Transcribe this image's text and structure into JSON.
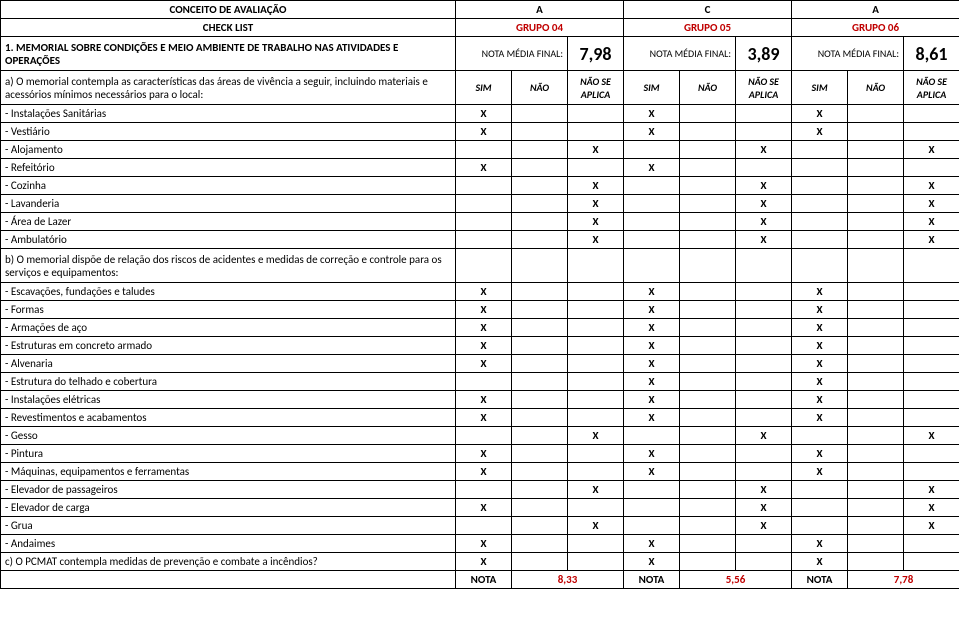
{
  "header": {
    "concept_label": "CONCEITO DE AVALIAÇÃO",
    "letters": [
      "A",
      "C",
      "A"
    ],
    "checklist_label": "CHECK LIST",
    "groups": [
      "GRUPO 04",
      "GRUPO 05",
      "GRUPO 06"
    ]
  },
  "section": {
    "title": "1. MEMORIAL SOBRE CONDIÇÕES E MEIO AMBIENTE DE TRABALHO NAS ATIVIDADES E OPERAÇÕES",
    "nota_label": "NOTA MÉDIA FINAL:",
    "nota_values": [
      "7,98",
      "3,89",
      "8,61"
    ]
  },
  "subhead": {
    "text": "a) O memorial contempla as características das áreas de vivência a seguir, incluindo materiais e acessórios mínimos necessários para o local:",
    "cols": {
      "sim": "SIM",
      "nao": "NÃO",
      "nsa": "NÃO SE APLICA"
    }
  },
  "rows_a": [
    {
      "label": " - Instalações Sanitárias",
      "g": [
        [
          "X",
          "",
          ""
        ],
        [
          "X",
          "",
          ""
        ],
        [
          "X",
          "",
          ""
        ]
      ]
    },
    {
      "label": " - Vestiário",
      "g": [
        [
          "X",
          "",
          ""
        ],
        [
          "X",
          "",
          ""
        ],
        [
          "X",
          "",
          ""
        ]
      ]
    },
    {
      "label": " - Alojamento",
      "g": [
        [
          "",
          "",
          "X"
        ],
        [
          "",
          "",
          "X"
        ],
        [
          "",
          "",
          "X"
        ]
      ]
    },
    {
      "label": " - Refeitório",
      "g": [
        [
          "X",
          "",
          ""
        ],
        [
          "X",
          "",
          ""
        ],
        [
          "",
          "",
          ""
        ]
      ]
    },
    {
      "label": " - Cozinha",
      "g": [
        [
          "",
          "",
          "X"
        ],
        [
          "",
          "",
          "X"
        ],
        [
          "",
          "",
          "X"
        ]
      ]
    },
    {
      "label": " - Lavanderia",
      "g": [
        [
          "",
          "",
          "X"
        ],
        [
          "",
          "",
          "X"
        ],
        [
          "",
          "",
          "X"
        ]
      ]
    },
    {
      "label": " - Área de Lazer",
      "g": [
        [
          "",
          "",
          "X"
        ],
        [
          "",
          "",
          "X"
        ],
        [
          "",
          "",
          "X"
        ]
      ]
    },
    {
      "label": " - Ambulatório",
      "g": [
        [
          "",
          "",
          "X"
        ],
        [
          "",
          "",
          "X"
        ],
        [
          "",
          "",
          "X"
        ]
      ]
    }
  ],
  "sub_b": "b) O memorial dispõe de relação dos riscos de acidentes e medidas de correção e controle para os serviços e equipamentos:",
  "rows_b": [
    {
      "label": " - Escavações, fundações e taludes",
      "g": [
        [
          "X",
          "",
          ""
        ],
        [
          "X",
          "",
          ""
        ],
        [
          "X",
          "",
          ""
        ]
      ]
    },
    {
      "label": " - Formas",
      "g": [
        [
          "X",
          "",
          ""
        ],
        [
          "X",
          "",
          ""
        ],
        [
          "X",
          "",
          ""
        ]
      ]
    },
    {
      "label": " - Armações de aço",
      "g": [
        [
          "X",
          "",
          ""
        ],
        [
          "X",
          "",
          ""
        ],
        [
          "X",
          "",
          ""
        ]
      ]
    },
    {
      "label": " - Estruturas em concreto armado",
      "g": [
        [
          "X",
          "",
          ""
        ],
        [
          "X",
          "",
          ""
        ],
        [
          "X",
          "",
          ""
        ]
      ]
    },
    {
      "label": " - Alvenaria",
      "g": [
        [
          "X",
          "",
          ""
        ],
        [
          "X",
          "",
          ""
        ],
        [
          "X",
          "",
          ""
        ]
      ]
    },
    {
      "label": " - Estrutura do telhado e cobertura",
      "g": [
        [
          "",
          "",
          ""
        ],
        [
          "X",
          "",
          ""
        ],
        [
          "X",
          "",
          ""
        ]
      ]
    },
    {
      "label": " - Instalações elétricas",
      "g": [
        [
          "X",
          "",
          ""
        ],
        [
          "X",
          "",
          ""
        ],
        [
          "X",
          "",
          ""
        ]
      ]
    },
    {
      "label": " - Revestimentos e acabamentos",
      "g": [
        [
          "X",
          "",
          ""
        ],
        [
          "X",
          "",
          ""
        ],
        [
          "X",
          "",
          ""
        ]
      ]
    },
    {
      "label": " - Gesso",
      "g": [
        [
          "",
          "",
          "X"
        ],
        [
          "",
          "",
          "X"
        ],
        [
          "",
          "",
          "X"
        ]
      ]
    },
    {
      "label": " - Pintura",
      "g": [
        [
          "X",
          "",
          ""
        ],
        [
          "X",
          "",
          ""
        ],
        [
          "X",
          "",
          ""
        ]
      ]
    },
    {
      "label": " - Máquinas, equipamentos e ferramentas",
      "g": [
        [
          "X",
          "",
          ""
        ],
        [
          "X",
          "",
          ""
        ],
        [
          "X",
          "",
          ""
        ]
      ]
    },
    {
      "label": " - Elevador de passageiros",
      "g": [
        [
          "",
          "",
          "X"
        ],
        [
          "",
          "",
          "X"
        ],
        [
          "",
          "",
          "X"
        ]
      ]
    },
    {
      "label": " - Elevador de carga",
      "g": [
        [
          "X",
          "",
          ""
        ],
        [
          "",
          "",
          "X"
        ],
        [
          "",
          "",
          "X"
        ]
      ]
    },
    {
      "label": " - Grua",
      "g": [
        [
          "",
          "",
          "X"
        ],
        [
          "",
          "",
          "X"
        ],
        [
          "",
          "",
          "X"
        ]
      ]
    },
    {
      "label": " - Andaimes",
      "g": [
        [
          "X",
          "",
          ""
        ],
        [
          "X",
          "",
          ""
        ],
        [
          "X",
          "",
          ""
        ]
      ]
    }
  ],
  "row_c": {
    "label": "c) O PCMAT contempla medidas de prevenção e combate a incêndios?",
    "g": [
      [
        "X",
        "",
        ""
      ],
      [
        "X",
        "",
        ""
      ],
      [
        "X",
        "",
        ""
      ]
    ]
  },
  "footer": {
    "label": "NOTA",
    "values": [
      "8,33",
      "5,56",
      "7,78"
    ]
  },
  "colors": {
    "red": "#c00000",
    "black": "#000000"
  }
}
